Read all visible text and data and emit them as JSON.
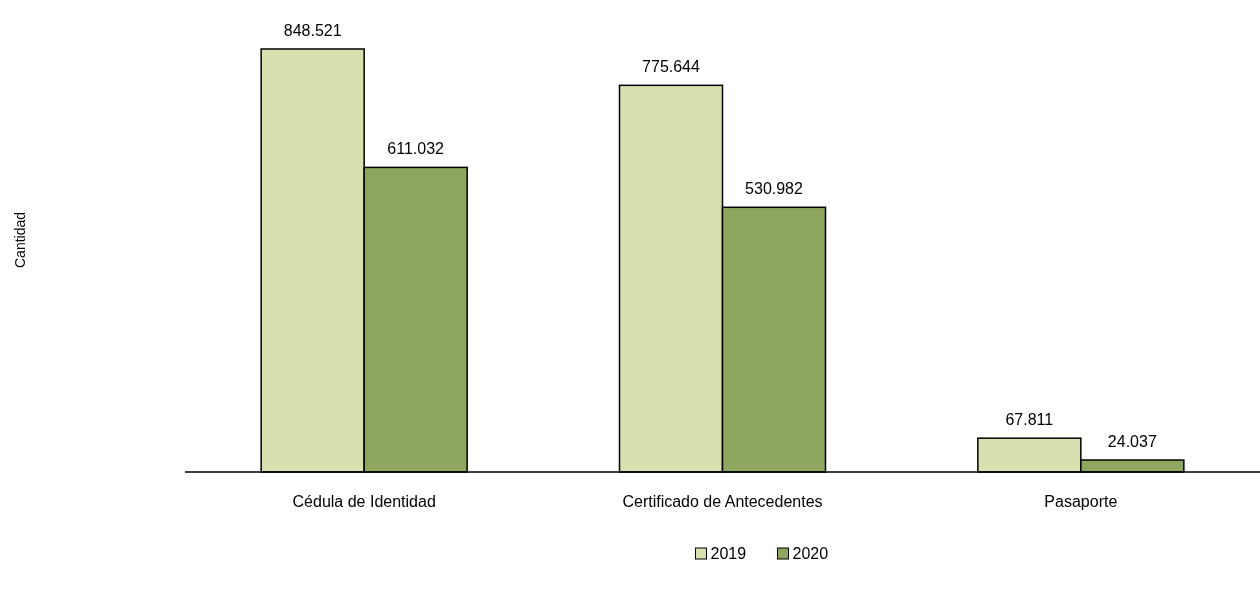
{
  "chart_data": {
    "type": "bar",
    "annotations": [
      "Cantidad"
    ],
    "categories": [
      "Cédula de Identidad",
      "Certificado de Antecedentes",
      "Pasaporte"
    ],
    "series": [
      {
        "name": "2019",
        "color": "#d8e0b0",
        "values": [
          848521,
          775644,
          67811
        ],
        "value_labels": [
          "848.521",
          "775.644",
          "67.811"
        ]
      },
      {
        "name": "2020",
        "color": "#8fa65e",
        "values": [
          611032,
          530982,
          24037
        ],
        "value_labels": [
          "611.032",
          "530.982",
          "24.037"
        ]
      }
    ],
    "legend": "bottom"
  }
}
